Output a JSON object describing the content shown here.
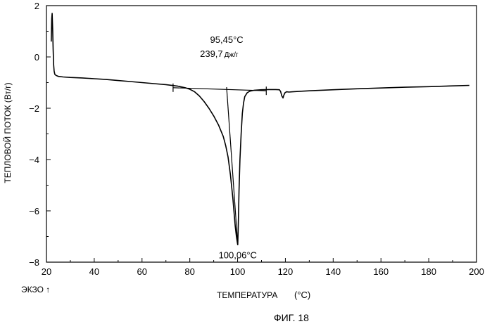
{
  "chart_data": {
    "type": "line",
    "xlabel": "ТЕМПЕРАТУРА",
    "xunit": "(°C)",
    "ylabel": "ТЕПЛОВОЙ ПОТОК (Вт/г)",
    "exo_label": "ЭКЗО ↑",
    "figure_caption": "ФИГ. 18",
    "xlim": [
      20,
      200
    ],
    "ylim": [
      -8,
      2
    ],
    "xticks": [
      20,
      40,
      60,
      80,
      100,
      120,
      140,
      160,
      180,
      200
    ],
    "yticks": [
      2,
      0,
      -2,
      -4,
      -6,
      -8
    ],
    "grid": false,
    "series": [
      {
        "x": [
          22.0,
          22.2,
          22.4,
          22.6,
          22.8,
          23.0,
          23.2,
          23.5,
          24.0,
          25.0,
          27.0,
          30.0,
          35.0,
          40.0,
          45.0,
          50.0,
          55.0,
          60.0,
          65.0,
          70.0,
          75.0,
          78.0,
          80.0,
          82.0,
          84.0,
          86.0,
          88.0,
          90.0,
          92.0,
          94.0,
          95.0,
          96.0,
          97.0,
          98.0,
          99.0,
          99.5,
          100.0,
          100.06,
          100.3,
          100.6,
          101.0,
          101.5,
          102.0,
          102.5,
          103.0,
          104.0,
          105.0,
          107.0,
          110.0,
          113.0,
          116.0,
          117.5,
          118.0,
          118.5,
          119.0,
          119.3,
          119.8,
          120.5,
          121.5,
          123.0,
          126.0,
          130.0,
          140.0,
          150.0,
          160.0,
          170.0,
          180.0,
          190.0,
          197.0
        ],
        "y": [
          0.6,
          1.5,
          1.7,
          1.1,
          0.3,
          -0.3,
          -0.55,
          -0.68,
          -0.72,
          -0.76,
          -0.78,
          -0.8,
          -0.82,
          -0.85,
          -0.88,
          -0.92,
          -0.96,
          -1.0,
          -1.04,
          -1.08,
          -1.14,
          -1.2,
          -1.26,
          -1.36,
          -1.52,
          -1.74,
          -2.0,
          -2.3,
          -2.65,
          -3.1,
          -3.45,
          -3.9,
          -4.6,
          -5.5,
          -6.6,
          -7.0,
          -7.3,
          -7.32,
          -6.5,
          -5.2,
          -4.0,
          -3.0,
          -2.2,
          -1.8,
          -1.55,
          -1.4,
          -1.34,
          -1.3,
          -1.28,
          -1.27,
          -1.27,
          -1.28,
          -1.35,
          -1.52,
          -1.6,
          -1.5,
          -1.4,
          -1.36,
          -1.37,
          -1.36,
          -1.34,
          -1.32,
          -1.28,
          -1.24,
          -1.21,
          -1.18,
          -1.16,
          -1.13,
          -1.11
        ]
      }
    ],
    "baseline": {
      "x": [
        73,
        112
      ],
      "y": [
        -1.2,
        -1.32
      ],
      "markers": [
        73,
        112
      ]
    },
    "tangent_line": {
      "x": [
        95.4,
        100.06
      ],
      "y": [
        -1.18,
        -7.32
      ]
    },
    "annotations": [
      {
        "text": "95,45°C",
        "x": 95.45,
        "y": 0.55,
        "size": "normal"
      },
      {
        "text": "239,7",
        "unit": "Дж/г",
        "x": 95.45,
        "y": 0.0,
        "size": "normal"
      },
      {
        "text": "100,06°C",
        "x": 100.06,
        "y": -7.85,
        "size": "normal"
      }
    ]
  }
}
